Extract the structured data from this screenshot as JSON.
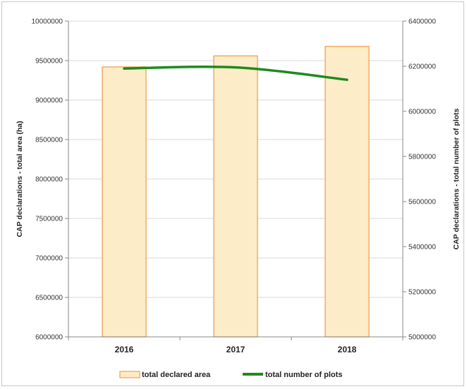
{
  "chart_data": {
    "type": "bar",
    "categories": [
      "2016",
      "2017",
      "2018"
    ],
    "series": [
      {
        "name": "total declared area",
        "type": "bar",
        "axis": "left",
        "values": [
          9420000,
          9560000,
          9680000
        ],
        "color": "#fdecc8",
        "stroke": "#f0a050"
      },
      {
        "name": "total number of plots",
        "type": "line",
        "axis": "right",
        "values": [
          6190000,
          6195000,
          6140000
        ],
        "color": "#1e8a1e"
      }
    ],
    "ylabel": "CAP declarations - total area (ha)",
    "y2label": "CAP declarations - total number of plots",
    "ylim": [
      6000000,
      10000000
    ],
    "y2lim": [
      5000000,
      6400000
    ],
    "yticks": [
      "6000000",
      "6500000",
      "7000000",
      "7500000",
      "8000000",
      "8500000",
      "9000000",
      "9500000",
      "10000000"
    ],
    "y2ticks": [
      "5000000",
      "5200000",
      "5400000",
      "5600000",
      "5800000",
      "6000000",
      "6200000",
      "6400000"
    ],
    "grid": true,
    "legend": "bottom"
  }
}
